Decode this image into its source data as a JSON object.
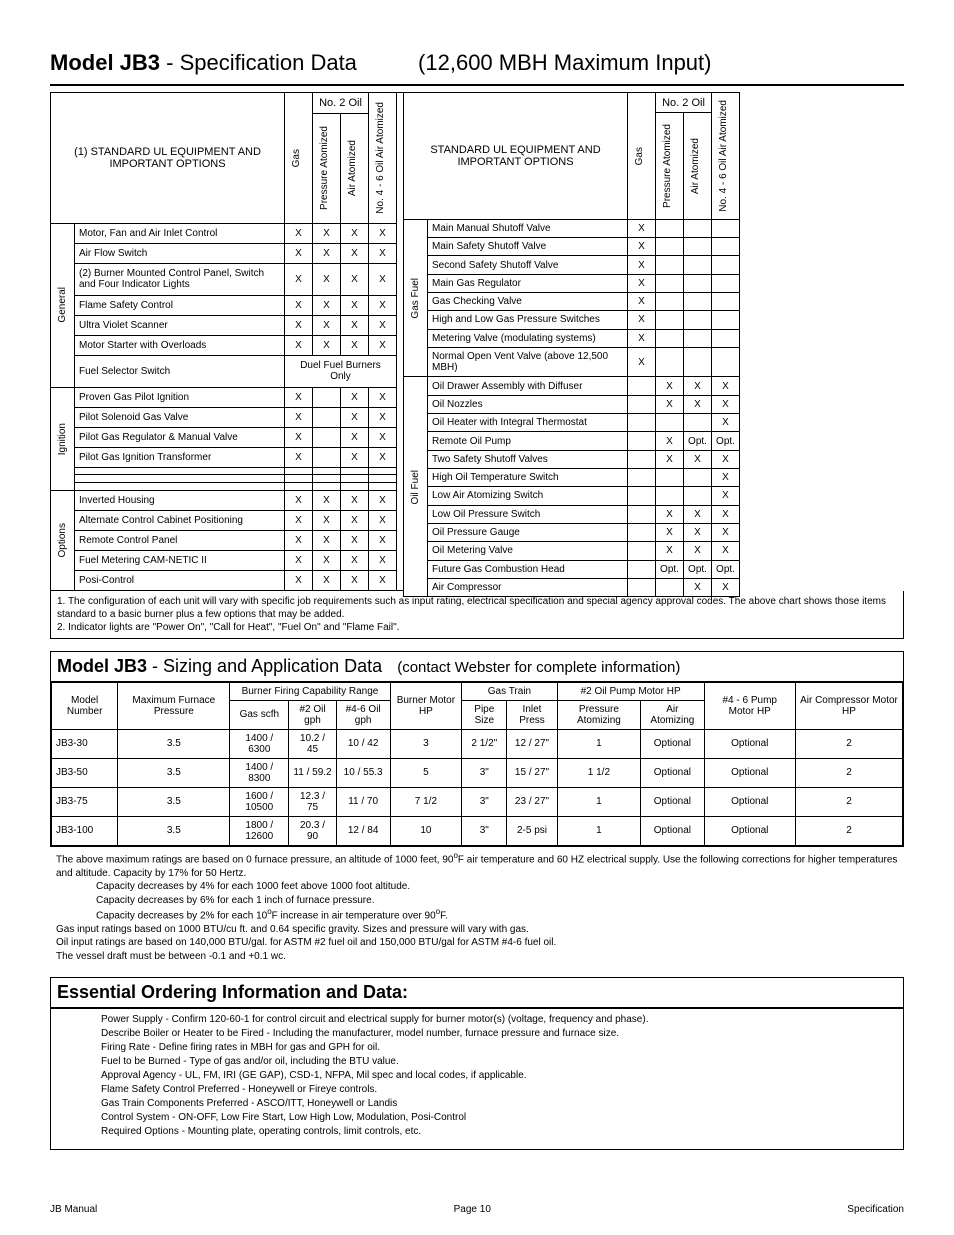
{
  "header": {
    "model_label": "Model JB3",
    "sep": " - ",
    "spec_label": "Specification Data",
    "max_input": "(12,600 MBH Maximum Input)"
  },
  "equip_left": {
    "title1": "(1)",
    "title2": "STANDARD UL EQUIPMENT AND IMPORTANT OPTIONS",
    "col_gas": "Gas",
    "col_no2": "No. 2 Oil",
    "col_press": "Pressure Atomized",
    "col_air": "Air Atomized",
    "col_no46": "No. 4 - 6 Oil Air Atomized",
    "groups": [
      {
        "label": "General",
        "rows": [
          {
            "t": "Motor, Fan and Air Inlet Control",
            "g": "X",
            "p": "X",
            "a": "X",
            "n": "X"
          },
          {
            "t": "Air Flow Switch",
            "g": "X",
            "p": "X",
            "a": "X",
            "n": "X"
          },
          {
            "t": "(2) Burner Mounted Control Panel, Switch and Four Indicator Lights",
            "g": "X",
            "p": "X",
            "a": "X",
            "n": "X"
          },
          {
            "t": "Flame Safety Control",
            "g": "X",
            "p": "X",
            "a": "X",
            "n": "X"
          },
          {
            "t": "Ultra Violet Scanner",
            "g": "X",
            "p": "X",
            "a": "X",
            "n": "X"
          },
          {
            "t": "Motor Starter with Overloads",
            "g": "X",
            "p": "X",
            "a": "X",
            "n": "X"
          },
          {
            "t": "Fuel Selector Switch",
            "span": "Duel Fuel Burners Only"
          }
        ]
      },
      {
        "label": "Ignition",
        "rows": [
          {
            "t": "Proven Gas Pilot Ignition",
            "g": "X",
            "p": "",
            "a": "X",
            "n": "X"
          },
          {
            "t": "Pilot Solenoid Gas Valve",
            "g": "X",
            "p": "",
            "a": "X",
            "n": "X"
          },
          {
            "t": "Pilot Gas Regulator & Manual Valve",
            "g": "X",
            "p": "",
            "a": "X",
            "n": "X"
          },
          {
            "t": "Pilot Gas Ignition Transformer",
            "g": "X",
            "p": "",
            "a": "X",
            "n": "X"
          },
          {
            "t": "",
            "g": "",
            "p": "",
            "a": "",
            "n": ""
          },
          {
            "t": "",
            "g": "",
            "p": "",
            "a": "",
            "n": ""
          },
          {
            "t": "",
            "g": "",
            "p": "",
            "a": "",
            "n": ""
          }
        ]
      },
      {
        "label": "Options",
        "rows": [
          {
            "t": "Inverted Housing",
            "g": "X",
            "p": "X",
            "a": "X",
            "n": "X"
          },
          {
            "t": "Alternate Control Cabinet Positioning",
            "g": "X",
            "p": "X",
            "a": "X",
            "n": "X"
          },
          {
            "t": "Remote Control Panel",
            "g": "X",
            "p": "X",
            "a": "X",
            "n": "X"
          },
          {
            "t": "Fuel Metering CAM-NETIC II",
            "g": "X",
            "p": "X",
            "a": "X",
            "n": "X"
          },
          {
            "t": "Posi-Control",
            "g": "X",
            "p": "X",
            "a": "X",
            "n": "X"
          }
        ]
      }
    ]
  },
  "equip_right": {
    "title": "STANDARD UL EQUIPMENT AND IMPORTANT OPTIONS",
    "groups": [
      {
        "label": "Gas Fuel",
        "rows": [
          {
            "t": "Main Manual Shutoff Valve",
            "g": "X",
            "p": "",
            "a": "",
            "n": ""
          },
          {
            "t": "Main Safety Shutoff Valve",
            "g": "X",
            "p": "",
            "a": "",
            "n": ""
          },
          {
            "t": "Second Safety Shutoff Valve",
            "g": "X",
            "p": "",
            "a": "",
            "n": ""
          },
          {
            "t": "Main Gas Regulator",
            "g": "X",
            "p": "",
            "a": "",
            "n": ""
          },
          {
            "t": "Gas Checking Valve",
            "g": "X",
            "p": "",
            "a": "",
            "n": ""
          },
          {
            "t": "High and Low Gas Pressure Switches",
            "g": "X",
            "p": "",
            "a": "",
            "n": ""
          },
          {
            "t": "Metering Valve (modulating systems)",
            "g": "X",
            "p": "",
            "a": "",
            "n": ""
          },
          {
            "t": "Normal Open Vent Valve (above 12,500 MBH)",
            "g": "X",
            "p": "",
            "a": "",
            "n": ""
          }
        ]
      },
      {
        "label": "Oil Fuel",
        "rows": [
          {
            "t": "Oil Drawer Assembly with Diffuser",
            "g": "",
            "p": "X",
            "a": "X",
            "n": "X"
          },
          {
            "t": "Oil Nozzles",
            "g": "",
            "p": "X",
            "a": "X",
            "n": "X"
          },
          {
            "t": "Oil Heater with Integral Thermostat",
            "g": "",
            "p": "",
            "a": "",
            "n": "X"
          },
          {
            "t": "Remote Oil Pump",
            "g": "",
            "p": "X",
            "a": "Opt.",
            "n": "Opt."
          },
          {
            "t": "Two Safety Shutoff Valves",
            "g": "",
            "p": "X",
            "a": "X",
            "n": "X"
          },
          {
            "t": "High Oil Temperature Switch",
            "g": "",
            "p": "",
            "a": "",
            "n": "X"
          },
          {
            "t": "Low Air Atomizing Switch",
            "g": "",
            "p": "",
            "a": "",
            "n": "X"
          },
          {
            "t": "Low Oil Pressure Switch",
            "g": "",
            "p": "X",
            "a": "X",
            "n": "X"
          },
          {
            "t": "Oil Pressure Gauge",
            "g": "",
            "p": "X",
            "a": "X",
            "n": "X"
          },
          {
            "t": "Oil Metering Valve",
            "g": "",
            "p": "X",
            "a": "X",
            "n": "X"
          },
          {
            "t": "Future Gas Combustion Head",
            "g": "",
            "p": "Opt.",
            "a": "Opt.",
            "n": "Opt."
          },
          {
            "t": "Air Compressor",
            "g": "",
            "p": "",
            "a": "X",
            "n": "X"
          }
        ]
      }
    ]
  },
  "footnotes": {
    "n1_bold": "1.",
    "n1": " The configuration of each unit will vary with specific job requirements such as input rating, electrical specification and special agency approval codes. The above chart shows those items standard to a basic burner plus a few options that may be added.",
    "n2_bold": "2.",
    "n2": " Indicator lights are \"Power On\", \"Call for Heat\", \"Fuel On\" and \"Flame Fail\"."
  },
  "sizing": {
    "title_bold": "Model JB3",
    "title_sep": " - ",
    "title_rest": "Sizing and Application Data",
    "title_paren": "(contact Webster for complete information)",
    "headers": {
      "model": "Model Number",
      "max": "Maximum Furnace Pressure",
      "bfcap": "Burner Firing Capability Range",
      "gas": "Gas scfh",
      "oil2": "#2 Oil gph",
      "oil46": "#4-6 Oil gph",
      "motor": "Burner Motor HP",
      "gastrain": "Gas Train",
      "pipe": "Pipe Size",
      "inlet": "Inlet Press",
      "pump": "#2 Oil Pump Motor HP",
      "press": "Pressure Atomizing",
      "airat": "Air Atomizing",
      "pump46": "#4 - 6 Pump Motor HP",
      "comp": "Air Compressor Motor HP"
    },
    "rows": [
      {
        "m": "JB3-30",
        "mx": "3.5",
        "g": "1400 / 6300",
        "o2": "10.2 / 45",
        "o46": "10 / 42",
        "hp": "3",
        "ps": "2 1/2\"",
        "ip": "12 / 27\"",
        "pr": "1",
        "aa": "Optional",
        "p46": "Optional",
        "ac": "2"
      },
      {
        "m": "JB3-50",
        "mx": "3.5",
        "g": "1400 / 8300",
        "o2": "11 / 59.2",
        "o46": "10 / 55.3",
        "hp": "5",
        "ps": "3\"",
        "ip": "15 / 27\"",
        "pr": "1 1/2",
        "aa": "Optional",
        "p46": "Optional",
        "ac": "2"
      },
      {
        "m": "JB3-75",
        "mx": "3.5",
        "g": "1600 / 10500",
        "o2": "12.3 / 75",
        "o46": "11 / 70",
        "hp": "7 1/2",
        "ps": "3\"",
        "ip": "23 / 27\"",
        "pr": "1",
        "aa": "Optional",
        "p46": "Optional",
        "ac": "2"
      },
      {
        "m": "JB3-100",
        "mx": "3.5",
        "g": "1800 / 12600",
        "o2": "20.3 / 90",
        "o46": "12 / 84",
        "hp": "10",
        "ps": "3\"",
        "ip": "2-5 psi",
        "pr": "1",
        "aa": "Optional",
        "p46": "Optional",
        "ac": "2"
      }
    ],
    "notes": [
      "The above maximum ratings are based on 0 furnace pressure, an altitude of 1000 feet, 90°F air temperature and 60 HZ electrical supply.  Use the following corrections for higher temperatures and altitude.  Capacity by 17% for 50 Hertz.",
      "Capacity decreases by 4% for each 1000 feet above 1000 foot altitude.",
      "Capacity decreases by 6% for each 1 inch of furnace pressure.",
      "Capacity decreases by 2% for each 10°F increase in air temperature over 90°F.",
      "Gas input ratings based on 1000 BTU/cu ft. and 0.64 specific gravity.  Sizes and pressure will vary with gas.",
      "Oil input ratings are based on 140,000 BTU/gal. for ASTM #2 fuel oil and 150,000 BTU/gal for ASTM #4-6 fuel oil.",
      "The vessel draft must be between -0.1 and +0.1 wc."
    ]
  },
  "ordering": {
    "title": "Essential Ordering Information and Data:",
    "items": [
      "Power Supply - Confirm 120-60-1 for control circuit and electrical supply for burner motor(s) (voltage, frequency and phase).",
      "Describe Boiler or Heater to be Fired - Including the manufacturer, model number, furnace pressure and furnace size.",
      "Firing Rate - Define firing rates in MBH for gas and GPH for oil.",
      "Fuel to be Burned - Type of gas and/or oil, including the BTU value.",
      "Approval Agency - UL, FM, IRI (GE GAP), CSD-1, NFPA, Mil spec and local codes, if applicable.",
      "Flame Safety Control Preferred - Honeywell or Fireye controls.",
      "Gas Train Components Preferred - ASCO/ITT, Honeywell or Landis",
      "Control System - ON-OFF, Low Fire Start, Low High Low, Modulation, Posi-Control",
      "Required Options - Mounting plate, operating controls, limit controls, etc."
    ]
  },
  "footer": {
    "left": "JB Manual",
    "center": "Page 10",
    "right": "Specification"
  }
}
